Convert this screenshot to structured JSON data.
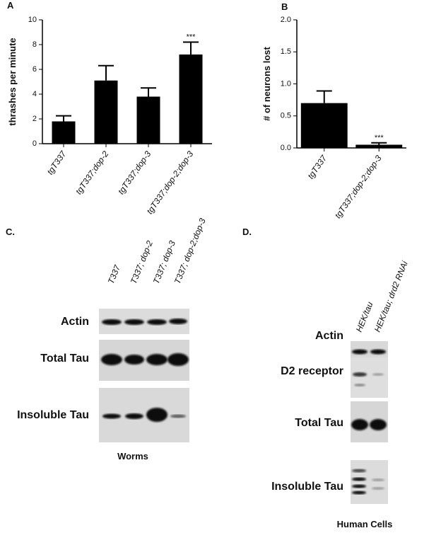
{
  "chart_data": [
    {
      "type": "bar",
      "panel": "A",
      "ylabel": "thrashes per minute",
      "categories": [
        "tgT337",
        "tgT337;dop-2",
        "tgT337;dop-3",
        "tgT337;dop-2;dop-3"
      ],
      "values": [
        1.8,
        5.1,
        3.8,
        7.2
      ],
      "errors": [
        0.45,
        1.2,
        0.7,
        1.0
      ],
      "color": "#000000",
      "ylim": [
        0,
        10
      ],
      "yticks": [
        0,
        2,
        4,
        6,
        8,
        10
      ],
      "annotation": "***",
      "annotation_index": 3
    },
    {
      "type": "bar",
      "panel": "B",
      "ylabel": "# of neurons lost",
      "categories": [
        "tgT337",
        "tgT337;dop-2;dop-3"
      ],
      "values": [
        0.7,
        0.05
      ],
      "errors": [
        0.19,
        0.03
      ],
      "color": "#000000",
      "ylim": [
        0,
        2
      ],
      "yticks": [
        {
          "value": 0,
          "label": "0.0"
        },
        {
          "value": 0.5,
          "label": "0.5"
        },
        {
          "value": 1,
          "label": "1.0"
        },
        {
          "value": 1.5,
          "label": "1.5"
        },
        {
          "value": 2,
          "label": "2.0"
        }
      ],
      "annotation": "***",
      "annotation_index": 1
    }
  ],
  "blots": [
    {
      "panel": "C.",
      "lanes": [
        "T337",
        "T337; dop-2",
        "T337; dop-3",
        "T337; dop-2;dop-3"
      ],
      "rows": [
        "Actin",
        "Total Tau",
        "Insoluble Tau"
      ],
      "caption": "Worms"
    },
    {
      "panel": "D.",
      "lanes": [
        "HEK/tau",
        "HEK/tau; drd2 RNAi"
      ],
      "rows": [
        "Actin",
        "D2 receptor",
        "Total Tau",
        "Insoluble Tau"
      ],
      "caption": "Human Cells"
    }
  ]
}
